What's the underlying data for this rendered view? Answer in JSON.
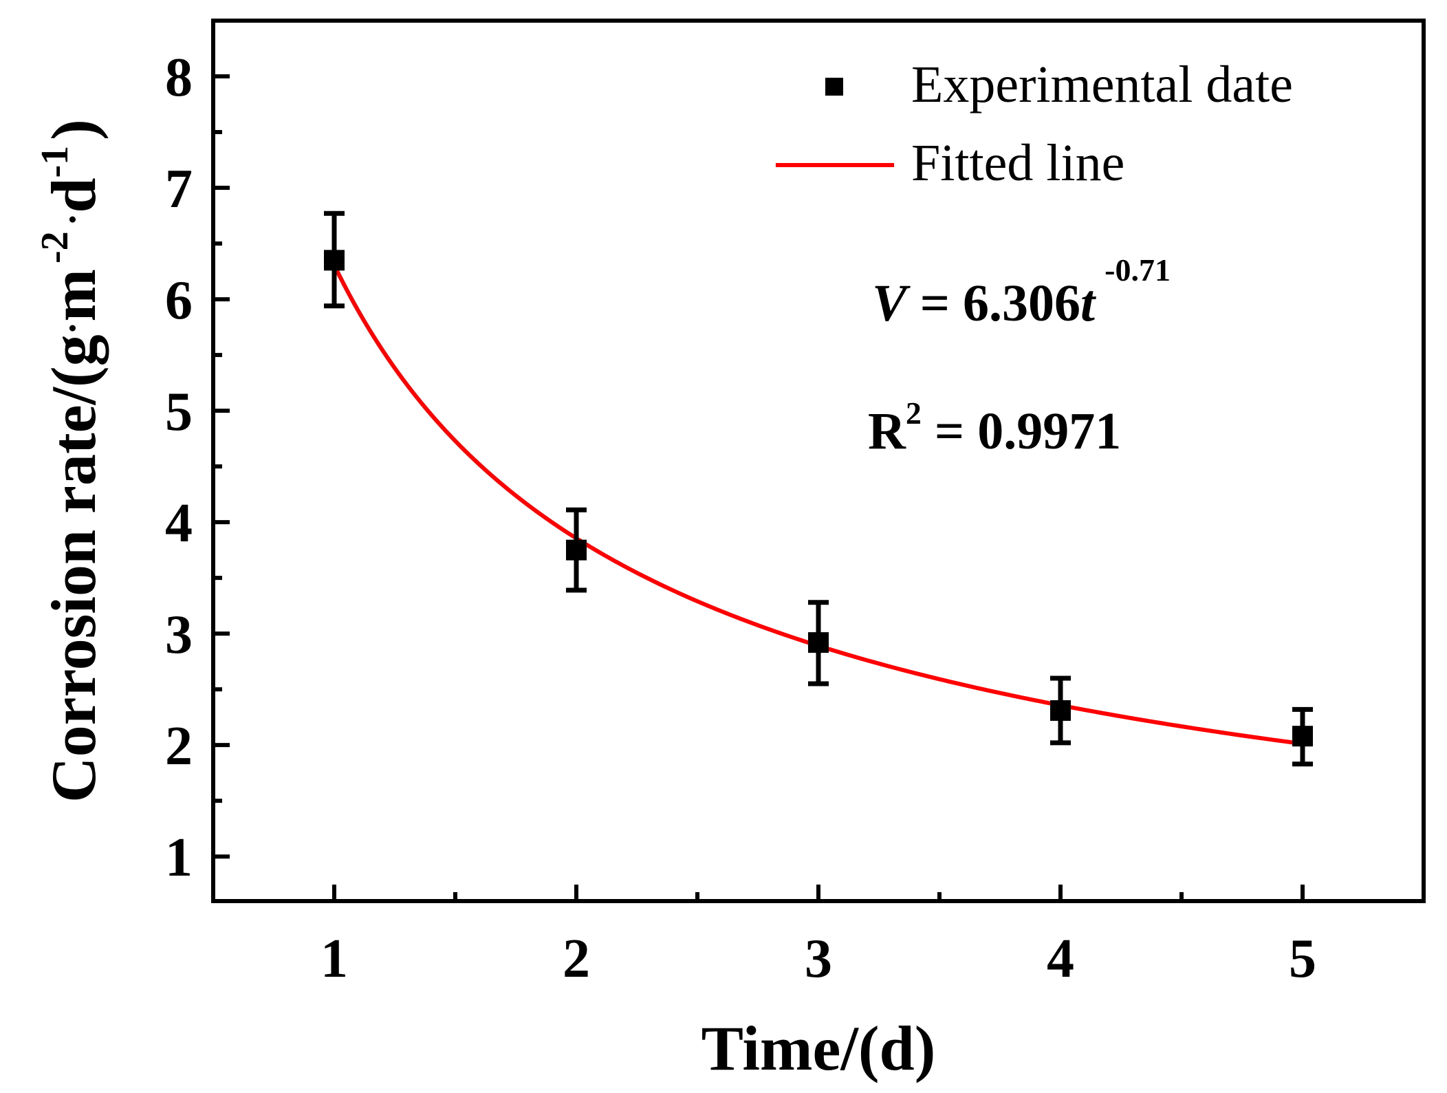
{
  "chart_data": {
    "type": "scatter",
    "xlabel": "Time/(d)",
    "ylabel": {
      "main": "Corrosion rate/(g",
      "dot1": "·",
      "m": "m",
      "exp1": "-2",
      "dot2": "·",
      "d": "d",
      "exp2": "-1",
      "close": ")"
    },
    "xlim": [
      0.5,
      5.5
    ],
    "ylim": [
      0.6,
      8.5
    ],
    "x_ticks": [
      1,
      2,
      3,
      4,
      5
    ],
    "x_tick_labels": [
      "1",
      "2",
      "3",
      "4",
      "5"
    ],
    "x_minor_ticks": [
      1.5,
      2.5,
      3.5,
      4.5
    ],
    "y_ticks": [
      1,
      2,
      3,
      4,
      5,
      6,
      7,
      8
    ],
    "y_tick_labels": [
      "1",
      "2",
      "3",
      "4",
      "5",
      "6",
      "7",
      "8"
    ],
    "y_minor_ticks": [
      1.5,
      2.5,
      3.5,
      4.5,
      5.5,
      6.5,
      7.5
    ],
    "grid": false,
    "series": [
      {
        "name": "Experimental date",
        "kind": "scatter",
        "marker": "square",
        "color": "#000000",
        "x": [
          1,
          2,
          3,
          4,
          5
        ],
        "y": [
          6.35,
          3.75,
          2.92,
          2.31,
          2.08
        ],
        "err_upper": [
          6.77,
          4.11,
          3.28,
          2.6,
          2.32
        ],
        "err_lower": [
          5.94,
          3.39,
          2.55,
          2.02,
          1.83
        ]
      },
      {
        "name": "Fitted line",
        "kind": "line",
        "color": "#ff0000",
        "model": {
          "a": 6.306,
          "b": -0.71
        },
        "x_range": [
          1,
          5
        ]
      }
    ],
    "legend": {
      "position": "top-right",
      "entries": [
        "Experimental date",
        "Fitted line"
      ]
    },
    "annotations": {
      "equation": {
        "v": "V",
        "eq": " = 6.306",
        "t": "t",
        "exp": "-0.71"
      },
      "r2": {
        "r": "R",
        "exp": "2",
        "rest": " = 0.9971"
      }
    }
  }
}
